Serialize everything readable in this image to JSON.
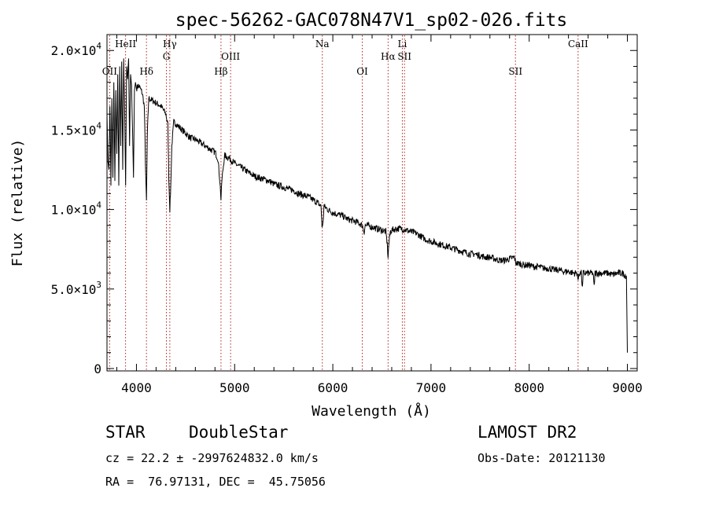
{
  "chart_data": {
    "type": "line",
    "title": "spec-56262-GAC078N47V1_sp02-026.fits",
    "xlabel": "Wavelength (Å)",
    "ylabel": "Flux (relative)",
    "xlim": [
      3700,
      9100
    ],
    "ylim": [
      -150,
      21000
    ],
    "x_ticks": [
      {
        "value": 4000,
        "label": "4000"
      },
      {
        "value": 5000,
        "label": "5000"
      },
      {
        "value": 6000,
        "label": "6000"
      },
      {
        "value": 7000,
        "label": "7000"
      },
      {
        "value": 8000,
        "label": "8000"
      },
      {
        "value": 9000,
        "label": "9000"
      }
    ],
    "y_ticks": [
      {
        "value": 0,
        "mant": "0",
        "exp": ""
      },
      {
        "value": 5000,
        "mant": "5.0×10",
        "exp": "3"
      },
      {
        "value": 10000,
        "mant": "1.0×10",
        "exp": "4"
      },
      {
        "value": 15000,
        "mant": "1.5×10",
        "exp": "4"
      },
      {
        "value": 20000,
        "mant": "2.0×10",
        "exp": "4"
      }
    ],
    "grid": false,
    "series": [
      {
        "color": "#000000",
        "points": [
          [
            3700,
            16000
          ],
          [
            3710,
            13000
          ],
          [
            3720,
            12500
          ],
          [
            3730,
            16500
          ],
          [
            3740,
            11500
          ],
          [
            3750,
            17000
          ],
          [
            3760,
            12000
          ],
          [
            3770,
            18000
          ],
          [
            3780,
            11800
          ],
          [
            3790,
            17500
          ],
          [
            3800,
            13500
          ],
          [
            3810,
            18500
          ],
          [
            3820,
            11500
          ],
          [
            3830,
            19000
          ],
          [
            3840,
            14000
          ],
          [
            3850,
            19300
          ],
          [
            3860,
            12500
          ],
          [
            3870,
            19500
          ],
          [
            3880,
            16000
          ],
          [
            3890,
            11500
          ],
          [
            3900,
            19000
          ],
          [
            3910,
            18200
          ],
          [
            3920,
            19500
          ],
          [
            3930,
            14000
          ],
          [
            3940,
            18500
          ],
          [
            3950,
            17800
          ],
          [
            3960,
            15000
          ],
          [
            3970,
            12000
          ],
          [
            3980,
            17500
          ],
          [
            3990,
            18000
          ],
          [
            4000,
            17600
          ],
          [
            4020,
            17800
          ],
          [
            4040,
            17600
          ],
          [
            4060,
            17300
          ],
          [
            4080,
            16500
          ],
          [
            4095,
            12000
          ],
          [
            4102,
            10500
          ],
          [
            4110,
            14500
          ],
          [
            4125,
            17000
          ],
          [
            4150,
            16900
          ],
          [
            4200,
            16700
          ],
          [
            4250,
            16500
          ],
          [
            4300,
            16000
          ],
          [
            4320,
            15300
          ],
          [
            4330,
            12000
          ],
          [
            4340,
            10000
          ],
          [
            4350,
            11500
          ],
          [
            4360,
            14000
          ],
          [
            4380,
            15500
          ],
          [
            4400,
            15400
          ],
          [
            4450,
            15100
          ],
          [
            4500,
            14800
          ],
          [
            4550,
            14500
          ],
          [
            4600,
            14400
          ],
          [
            4650,
            14200
          ],
          [
            4700,
            14000
          ],
          [
            4750,
            13800
          ],
          [
            4800,
            13600
          ],
          [
            4830,
            13200
          ],
          [
            4850,
            11800
          ],
          [
            4861,
            10600
          ],
          [
            4870,
            11800
          ],
          [
            4890,
            13000
          ],
          [
            4900,
            13400
          ],
          [
            4950,
            13200
          ],
          [
            5000,
            12900
          ],
          [
            5050,
            12700
          ],
          [
            5100,
            12500
          ],
          [
            5150,
            12300
          ],
          [
            5200,
            12100
          ],
          [
            5250,
            12000
          ],
          [
            5300,
            11900
          ],
          [
            5350,
            11800
          ],
          [
            5400,
            11600
          ],
          [
            5450,
            11500
          ],
          [
            5500,
            11400
          ],
          [
            5550,
            11300
          ],
          [
            5600,
            11200
          ],
          [
            5650,
            11000
          ],
          [
            5700,
            10900
          ],
          [
            5750,
            10800
          ],
          [
            5800,
            10600
          ],
          [
            5850,
            10400
          ],
          [
            5880,
            10200
          ],
          [
            5890,
            9000
          ],
          [
            5895,
            8900
          ],
          [
            5900,
            9100
          ],
          [
            5910,
            10200
          ],
          [
            5950,
            10000
          ],
          [
            6000,
            9800
          ],
          [
            6050,
            9700
          ],
          [
            6100,
            9600
          ],
          [
            6150,
            9400
          ],
          [
            6200,
            9300
          ],
          [
            6250,
            9200
          ],
          [
            6300,
            9000
          ],
          [
            6320,
            8600
          ],
          [
            6330,
            9000
          ],
          [
            6350,
            9000
          ],
          [
            6400,
            8900
          ],
          [
            6450,
            8800
          ],
          [
            6500,
            8700
          ],
          [
            6540,
            8600
          ],
          [
            6555,
            7800
          ],
          [
            6563,
            7000
          ],
          [
            6570,
            7800
          ],
          [
            6585,
            8600
          ],
          [
            6600,
            8700
          ],
          [
            6650,
            8800
          ],
          [
            6700,
            8800
          ],
          [
            6750,
            8700
          ],
          [
            6800,
            8600
          ],
          [
            6850,
            8500
          ],
          [
            6900,
            8300
          ],
          [
            6950,
            8100
          ],
          [
            7000,
            8000
          ],
          [
            7050,
            7900
          ],
          [
            7100,
            7800
          ],
          [
            7150,
            7700
          ],
          [
            7200,
            7600
          ],
          [
            7250,
            7500
          ],
          [
            7300,
            7400
          ],
          [
            7350,
            7300
          ],
          [
            7400,
            7200
          ],
          [
            7450,
            7200
          ],
          [
            7500,
            7100
          ],
          [
            7550,
            7000
          ],
          [
            7600,
            7000
          ],
          [
            7650,
            6900
          ],
          [
            7700,
            6800
          ],
          [
            7750,
            6800
          ],
          [
            7800,
            6900
          ],
          [
            7850,
            7000
          ],
          [
            7860,
            6700
          ],
          [
            7880,
            6600
          ],
          [
            7900,
            6600
          ],
          [
            7950,
            6500
          ],
          [
            8000,
            6500
          ],
          [
            8050,
            6400
          ],
          [
            8100,
            6400
          ],
          [
            8150,
            6300
          ],
          [
            8200,
            6300
          ],
          [
            8250,
            6200
          ],
          [
            8300,
            6200
          ],
          [
            8350,
            6100
          ],
          [
            8400,
            6100
          ],
          [
            8450,
            6000
          ],
          [
            8490,
            6000
          ],
          [
            8498,
            5400
          ],
          [
            8505,
            6000
          ],
          [
            8530,
            6000
          ],
          [
            8542,
            5000
          ],
          [
            8550,
            6000
          ],
          [
            8600,
            6000
          ],
          [
            8650,
            6000
          ],
          [
            8662,
            5100
          ],
          [
            8670,
            6000
          ],
          [
            8700,
            6000
          ],
          [
            8750,
            6000
          ],
          [
            8800,
            6000
          ],
          [
            8850,
            5900
          ],
          [
            8900,
            6000
          ],
          [
            8950,
            6000
          ],
          [
            8990,
            5800
          ],
          [
            9000,
            1000
          ]
        ]
      }
    ],
    "lines": [
      {
        "label": "OII",
        "x": 3727,
        "row": 2
      },
      {
        "label": "HeII",
        "x": 3889,
        "row": 0
      },
      {
        "label": "Hδ",
        "x": 4102,
        "row": 2
      },
      {
        "label": "Hγ",
        "x": 4340,
        "row": 0
      },
      {
        "label": "G",
        "x": 4305,
        "row": 1
      },
      {
        "label": "Hβ",
        "x": 4861,
        "row": 2
      },
      {
        "label": "OIII",
        "x": 4959,
        "row": 1
      },
      {
        "label": "Na",
        "x": 5893,
        "row": 0
      },
      {
        "label": "OI",
        "x": 6300,
        "row": 2
      },
      {
        "label": "Hα",
        "x": 6563,
        "row": 1
      },
      {
        "label": "Li",
        "x": 6708,
        "row": 0
      },
      {
        "label": "SII",
        "x": 6730,
        "row": 1
      },
      {
        "label": "SII",
        "x": 7860,
        "row": 2
      },
      {
        "label": "CaII",
        "x": 8498,
        "row": 0
      }
    ]
  },
  "info": {
    "obj_class": "STAR",
    "subclass": "DoubleStar",
    "survey": "LAMOST DR2",
    "cz": "cz = 22.2 ± -2997624832.0 km/s",
    "obs_date": "Obs-Date: 20121130",
    "radec": "RA =  76.97131, DEC =  45.75056"
  }
}
